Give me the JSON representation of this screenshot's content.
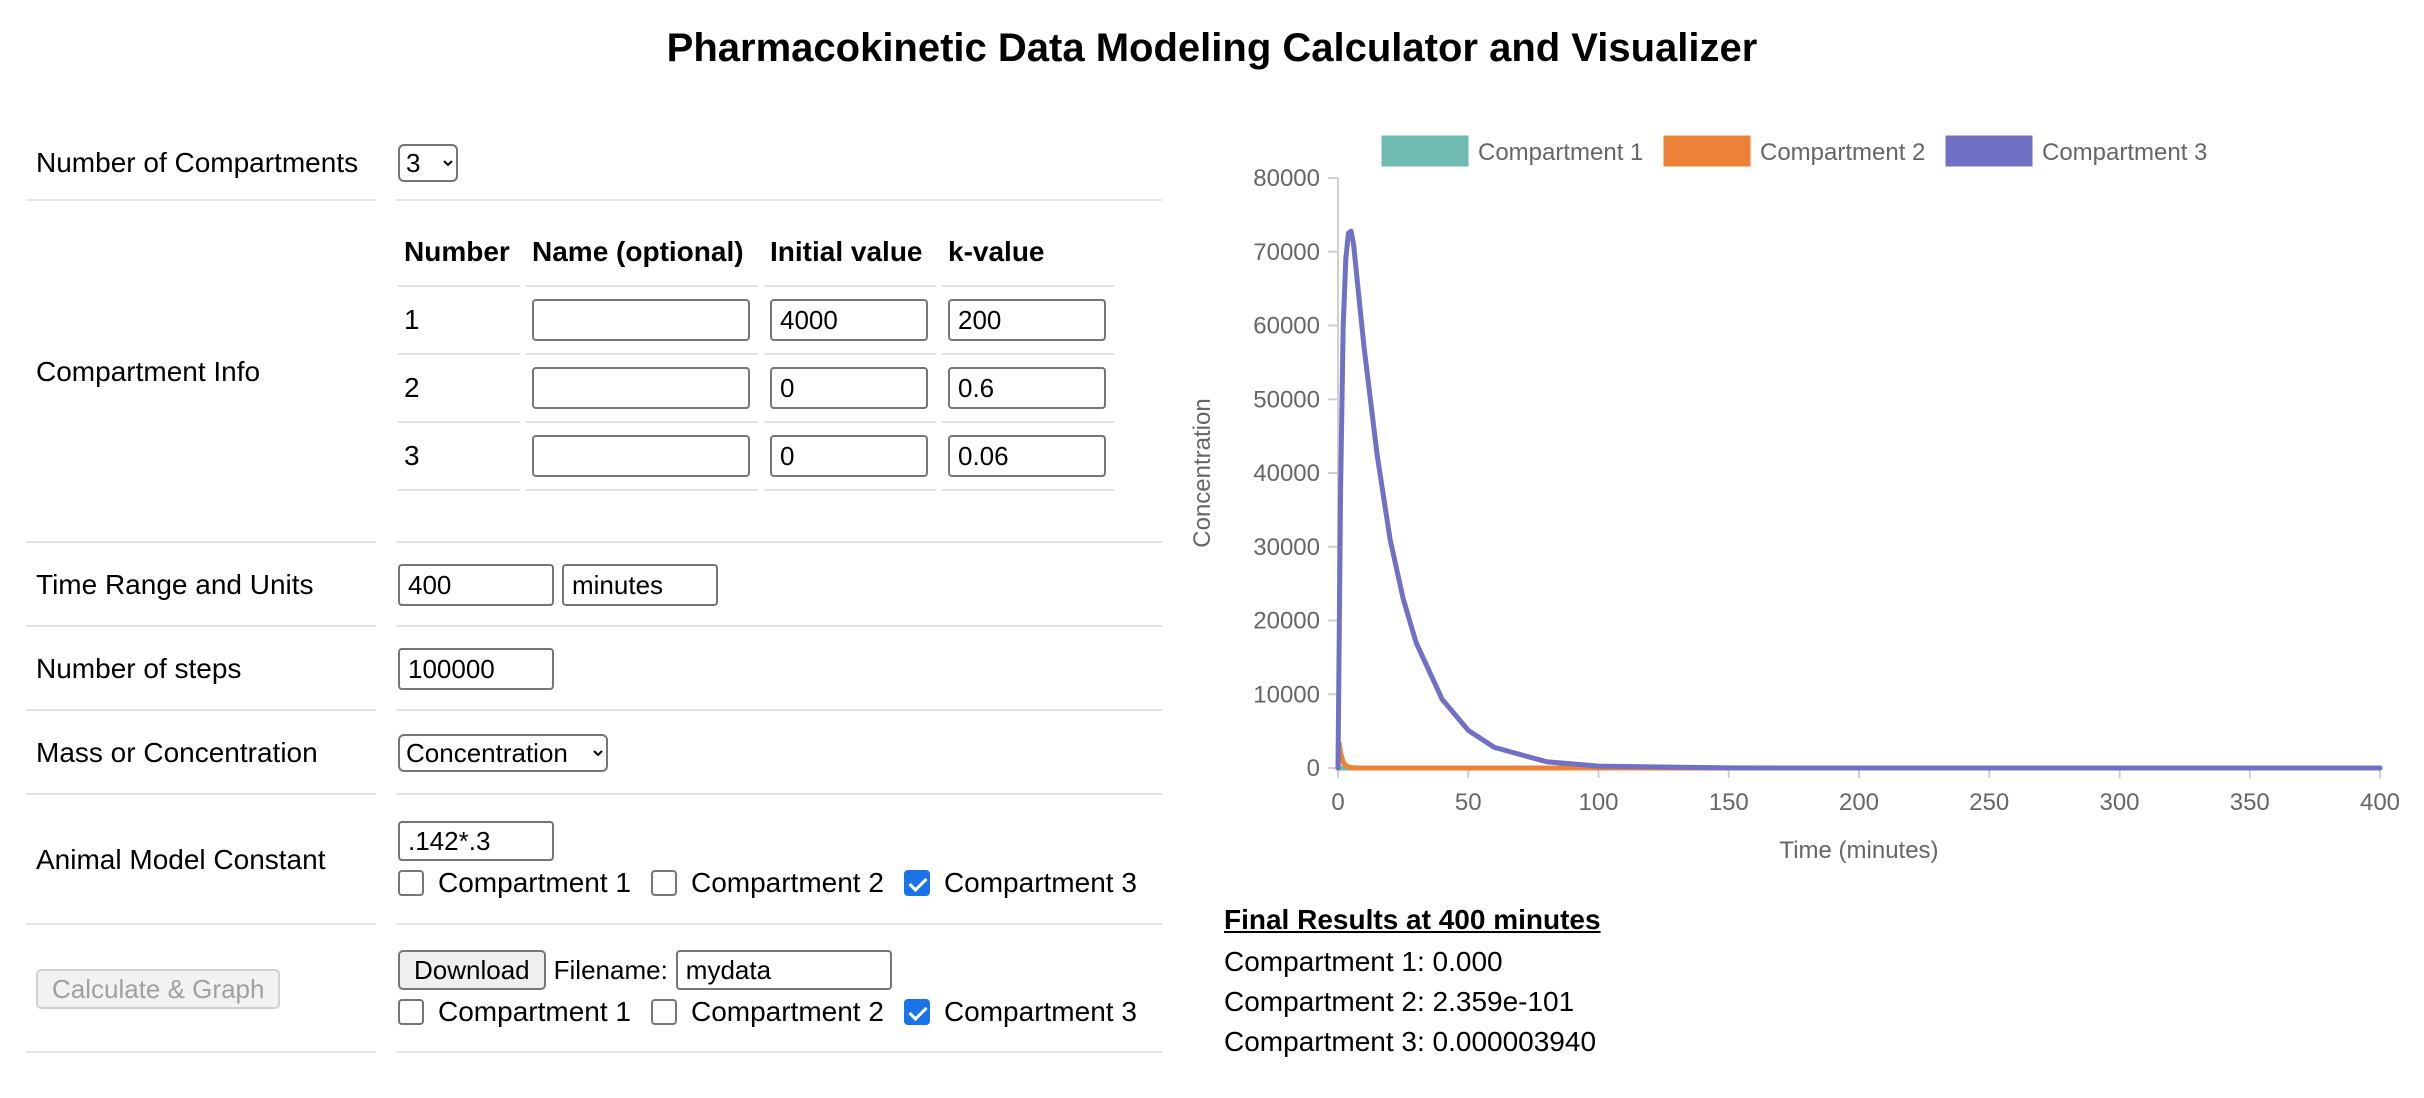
{
  "title": "Pharmacokinetic Data Modeling Calculator and Visualizer",
  "form": {
    "num_compartments": {
      "label": "Number of Compartments",
      "value": "3"
    },
    "compartment_info": {
      "label": "Compartment Info",
      "headers": [
        "Number",
        "Name (optional)",
        "Initial value",
        "k-value"
      ],
      "rows": [
        {
          "number": "1",
          "name": "",
          "initial": "4000",
          "k": "200"
        },
        {
          "number": "2",
          "name": "",
          "initial": "0",
          "k": "0.6"
        },
        {
          "number": "3",
          "name": "",
          "initial": "0",
          "k": "0.06"
        }
      ]
    },
    "time_range": {
      "label": "Time Range and Units",
      "value": "400",
      "units": "minutes"
    },
    "steps": {
      "label": "Number of steps",
      "value": "100000"
    },
    "mass_conc": {
      "label": "Mass or Concentration",
      "value": "Concentration"
    },
    "animal_constant": {
      "label": "Animal Model Constant",
      "value": ".142*.3",
      "checkboxes": [
        {
          "label": "Compartment 1",
          "checked": false
        },
        {
          "label": "Compartment 2",
          "checked": false
        },
        {
          "label": "Compartment 3",
          "checked": true
        }
      ]
    },
    "calculate_label": "Calculate & Graph",
    "download": {
      "button_label": "Download",
      "filename_label": "Filename:",
      "filename_value": "mydata",
      "checkboxes": [
        {
          "label": "Compartment 1",
          "checked": false
        },
        {
          "label": "Compartment 2",
          "checked": false
        },
        {
          "label": "Compartment 3",
          "checked": true
        }
      ]
    }
  },
  "chart_data": {
    "type": "line",
    "xlabel": "Time (minutes)",
    "ylabel": "Concentration",
    "xlim": [
      0,
      400
    ],
    "ylim": [
      0,
      80000
    ],
    "xticks": [
      0,
      50,
      100,
      150,
      200,
      250,
      300,
      350,
      400
    ],
    "yticks": [
      0,
      10000,
      20000,
      30000,
      40000,
      50000,
      60000,
      70000,
      80000
    ],
    "legend_position": "top",
    "series": [
      {
        "name": "Compartment 1",
        "color": "#6fbbb2",
        "x": [
          0,
          0.5,
          1,
          2,
          400
        ],
        "y": [
          0,
          0,
          0,
          0,
          0
        ]
      },
      {
        "name": "Compartment 2",
        "color": "#ec8237",
        "x": [
          0,
          0.5,
          1,
          2,
          3,
          5,
          8,
          400
        ],
        "y": [
          0,
          3300,
          2000,
          800,
          300,
          60,
          0,
          0
        ]
      },
      {
        "name": "Compartment 3",
        "color": "#7070c4",
        "x": [
          0,
          1,
          2,
          3,
          4,
          5,
          6,
          8,
          10,
          15,
          20,
          25,
          30,
          40,
          50,
          60,
          80,
          100,
          150,
          200,
          400
        ],
        "y": [
          0,
          38000,
          60000,
          69000,
          72500,
          72800,
          71000,
          64000,
          57000,
          42500,
          31000,
          23000,
          17000,
          9300,
          5100,
          2800,
          850,
          260,
          13,
          0.6,
          0
        ]
      }
    ]
  },
  "results": {
    "title": "Final Results at 400 minutes",
    "lines": [
      "Compartment 1: 0.000",
      "Compartment 2: 2.359e-101",
      "Compartment 3: 0.000003940"
    ]
  }
}
